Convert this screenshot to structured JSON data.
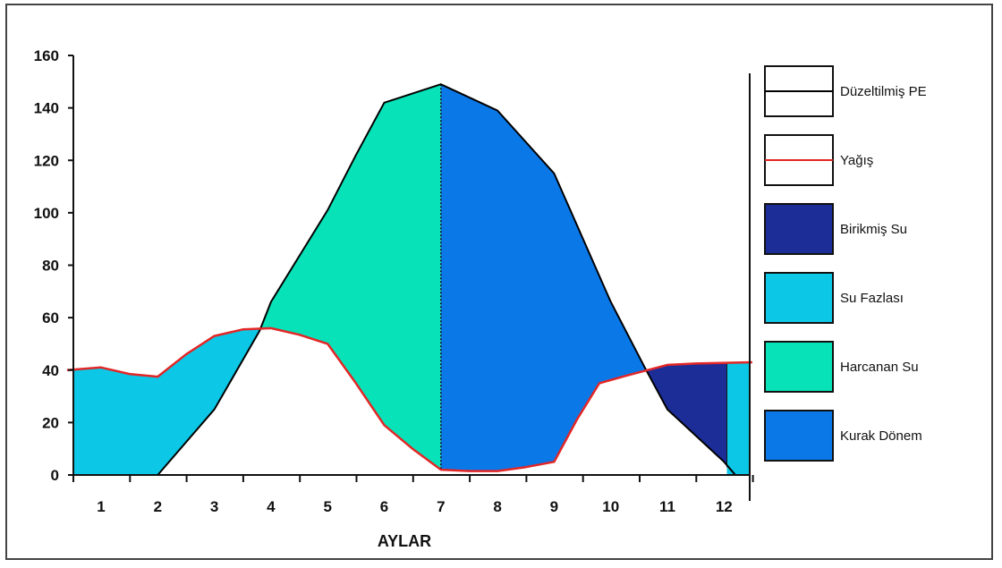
{
  "chart_data": {
    "type": "area",
    "xlabel": "AYLAR",
    "ylabel": "",
    "ylim": [
      0,
      160
    ],
    "yticks": [
      "0",
      "20",
      "40",
      "60",
      "80",
      "100",
      "120",
      "140",
      "160"
    ],
    "categories": [
      "1",
      "2",
      "3",
      "4",
      "5",
      "6",
      "7",
      "8",
      "9",
      "10",
      "11",
      "12"
    ],
    "series": [
      {
        "name": "Düzeltilmiş PE",
        "kind": "line",
        "color": "#000000",
        "points": [
          [
            2,
            0
          ],
          [
            3,
            25
          ],
          [
            3.8,
            55
          ],
          [
            4,
            66
          ],
          [
            5,
            101
          ],
          [
            5.5,
            122
          ],
          [
            6,
            142
          ],
          [
            7,
            149
          ],
          [
            8,
            139
          ],
          [
            9,
            115
          ],
          [
            10,
            66
          ],
          [
            10.6,
            41
          ],
          [
            11,
            25
          ],
          [
            12,
            5
          ],
          [
            12.2,
            0
          ]
        ]
      },
      {
        "name": "Yağış",
        "kind": "line",
        "color": "#e32626",
        "points": [
          [
            0.4,
            40
          ],
          [
            1,
            41
          ],
          [
            1.5,
            38.5
          ],
          [
            2,
            37.5
          ],
          [
            2.5,
            46
          ],
          [
            3,
            53
          ],
          [
            3.5,
            55.5
          ],
          [
            4,
            56
          ],
          [
            4.5,
            53.5
          ],
          [
            5,
            50
          ],
          [
            5.5,
            35
          ],
          [
            6,
            19
          ],
          [
            6.5,
            10
          ],
          [
            7,
            2
          ],
          [
            7.5,
            1.5
          ],
          [
            8,
            1.5
          ],
          [
            8.5,
            3
          ],
          [
            9,
            5
          ],
          [
            9.4,
            21
          ],
          [
            9.8,
            35
          ],
          [
            10.3,
            38
          ],
          [
            11,
            42
          ],
          [
            11.5,
            42.5
          ],
          [
            12.5,
            43
          ]
        ]
      }
    ],
    "regions": [
      {
        "name": "Birikmiş Su",
        "color": "#1c2d98"
      },
      {
        "name": "Su Fazlası",
        "color": "#0cc8e6"
      },
      {
        "name": "Harcanan Su",
        "color": "#08e2b8"
      },
      {
        "name": "Kurak Dönem",
        "color": "#0b78e8"
      }
    ],
    "legend": {
      "position": "right",
      "items": [
        {
          "label": "Düzeltilmiş PE",
          "kind": "line",
          "color": "#000000"
        },
        {
          "label": "Yağış",
          "kind": "line",
          "color": "#e32626"
        },
        {
          "label": "Birikmiş Su",
          "kind": "fill",
          "color": "#1c2d98"
        },
        {
          "label": "Su Fazlası",
          "kind": "fill",
          "color": "#0cc8e6"
        },
        {
          "label": "Harcanan Su",
          "kind": "fill",
          "color": "#08e2b8"
        },
        {
          "label": "Kurak Dönem",
          "kind": "fill",
          "color": "#0b78e8"
        }
      ]
    }
  }
}
